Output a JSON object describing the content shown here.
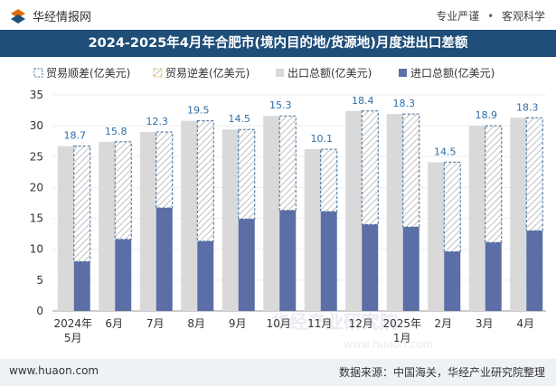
{
  "header": {
    "brand": "华经情报网",
    "tags": [
      "专业严谨",
      "客观科学"
    ]
  },
  "footer": {
    "site": "www.huaon.com",
    "source": "数据来源：中国海关，华经产业研究院整理"
  },
  "watermark": "华经产业研究院",
  "watermark_url": "www.huaon.com",
  "colors": {
    "title_bg": "#1f4e79",
    "export_bar": "#d9d9d9",
    "import_bar": "#5b6ea6",
    "balance_border": "#3f6c97",
    "label_blue": "#2e6da4"
  },
  "chart_data": {
    "type": "bar",
    "title": "2024-2025年4月年合肥市(境内目的地/货源地)月度进出口差额",
    "categories": [
      "2024年\n5月",
      "6月",
      "7月",
      "8月",
      "9月",
      "10月",
      "11月",
      "12月",
      "2025年\n1月",
      "2月",
      "3月",
      "4月"
    ],
    "ylim": [
      0,
      35
    ],
    "yticks": [
      0,
      5,
      10,
      15,
      20,
      25,
      30,
      35
    ],
    "legend_position": "top",
    "series": [
      {
        "name": "贸易顺差(亿美元)",
        "values": [
          18.7,
          15.8,
          12.3,
          19.5,
          14.5,
          15.3,
          10.1,
          18.4,
          18.3,
          14.5,
          18.9,
          18.3
        ]
      },
      {
        "name": "贸易逆差(亿美元)",
        "values": [
          0,
          0,
          0,
          0,
          0,
          0,
          0,
          0,
          0,
          0,
          0,
          0
        ]
      },
      {
        "name": "出口总额(亿美元)",
        "values": [
          26.7,
          27.4,
          29.0,
          30.8,
          29.4,
          31.6,
          26.2,
          32.4,
          31.9,
          24.1,
          30.0,
          31.3
        ]
      },
      {
        "name": "进口总额(亿美元)",
        "values": [
          8.0,
          11.6,
          16.7,
          11.3,
          14.9,
          16.3,
          16.1,
          14.0,
          13.6,
          9.6,
          11.1,
          13.0
        ]
      }
    ]
  }
}
